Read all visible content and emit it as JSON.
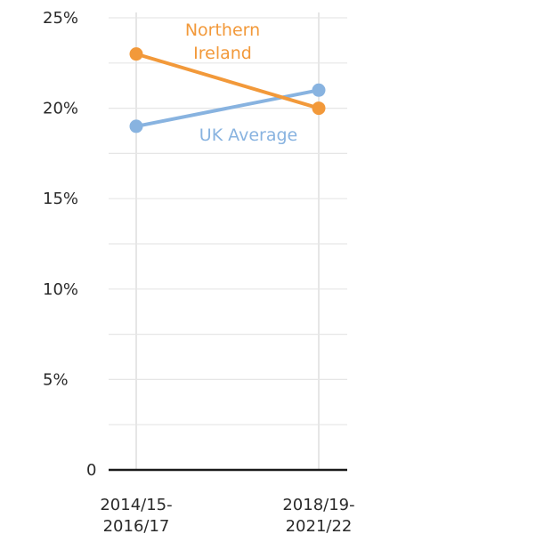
{
  "chart_data": {
    "type": "line",
    "categories": [
      "2014/15-2016/17",
      "2018/19-2021/22"
    ],
    "category_labels": [
      [
        "2014/15-",
        "2016/17"
      ],
      [
        "2018/19-",
        "2021/22"
      ]
    ],
    "series": [
      {
        "name": "Northern Ireland",
        "label_lines": [
          "Northern",
          "Ireland"
        ],
        "values": [
          23,
          20
        ],
        "color": "#f2993a"
      },
      {
        "name": "UK Average",
        "label_lines": [
          "UK Average"
        ],
        "values": [
          19,
          21
        ],
        "color": "#88b3e0"
      }
    ],
    "y_ticks": [
      {
        "value": 0,
        "label": "0"
      },
      {
        "value": 5,
        "label": "5%"
      },
      {
        "value": 10,
        "label": "10%"
      },
      {
        "value": 15,
        "label": "15%"
      },
      {
        "value": 20,
        "label": "20%"
      },
      {
        "value": 25,
        "label": "25%"
      }
    ],
    "ylim": [
      0,
      25
    ],
    "grid": true,
    "title": "",
    "xlabel": "",
    "ylabel": ""
  }
}
